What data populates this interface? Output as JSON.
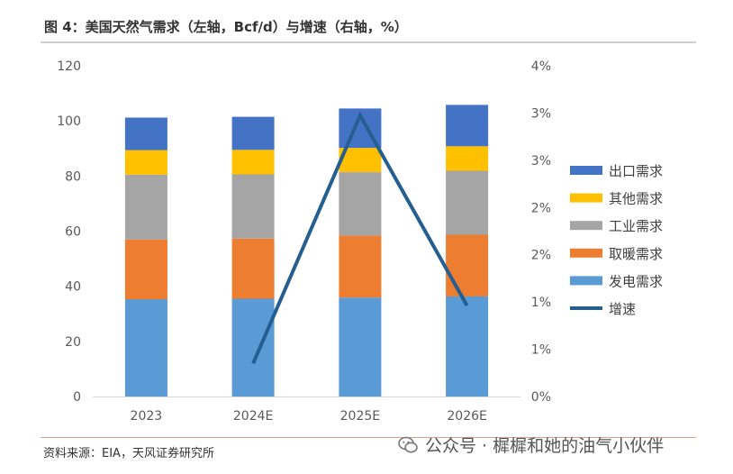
{
  "title": "图 4：美国天然气需求（左轴，Bcf/d）与增速（右轴，%）",
  "source": "资料来源：EIA，天风证券研究所",
  "watermark": "公众号 · 樨樨和她的油气小伙伴",
  "chart_data": {
    "type": "bar",
    "stacked": true,
    "categories": [
      "2023",
      "2024E",
      "2025E",
      "2026E"
    ],
    "series": [
      {
        "name": "发电需求",
        "color": "#5b9bd5",
        "values": [
          35.3,
          35.5,
          35.9,
          36.3
        ]
      },
      {
        "name": "取暖需求",
        "color": "#ed7d31",
        "values": [
          21.7,
          21.8,
          22.5,
          22.4
        ]
      },
      {
        "name": "工业需求",
        "color": "#a5a5a5",
        "values": [
          23.5,
          23.3,
          23.0,
          23.2
        ]
      },
      {
        "name": "其他需求",
        "color": "#ffc000",
        "values": [
          8.9,
          8.9,
          8.8,
          8.9
        ]
      },
      {
        "name": "出口需求",
        "color": "#4472c4",
        "values": [
          11.8,
          12.0,
          14.3,
          15.0
        ]
      }
    ],
    "line_series": {
      "name": "增速",
      "color": "#255e91",
      "axis": "right",
      "x": [
        "2024E",
        "2025E",
        "2026E"
      ],
      "values": [
        0.4,
        3.4,
        1.1
      ]
    },
    "y_left": {
      "ylim": [
        0,
        120
      ],
      "ticks": [
        "0",
        "20",
        "40",
        "60",
        "80",
        "100",
        "120"
      ]
    },
    "y_right": {
      "ylim": [
        0,
        4
      ],
      "ticks": [
        "0%",
        "1%",
        "1%",
        "2%",
        "2%",
        "3%",
        "3%",
        "4%"
      ],
      "tick_values": [
        0,
        0.5,
        1,
        1.5,
        2,
        2.5,
        3,
        3.5
      ]
    },
    "legend_order": [
      "出口需求",
      "其他需求",
      "工业需求",
      "取暖需求",
      "发电需求",
      "增速"
    ],
    "legend": "right",
    "grid": false
  }
}
